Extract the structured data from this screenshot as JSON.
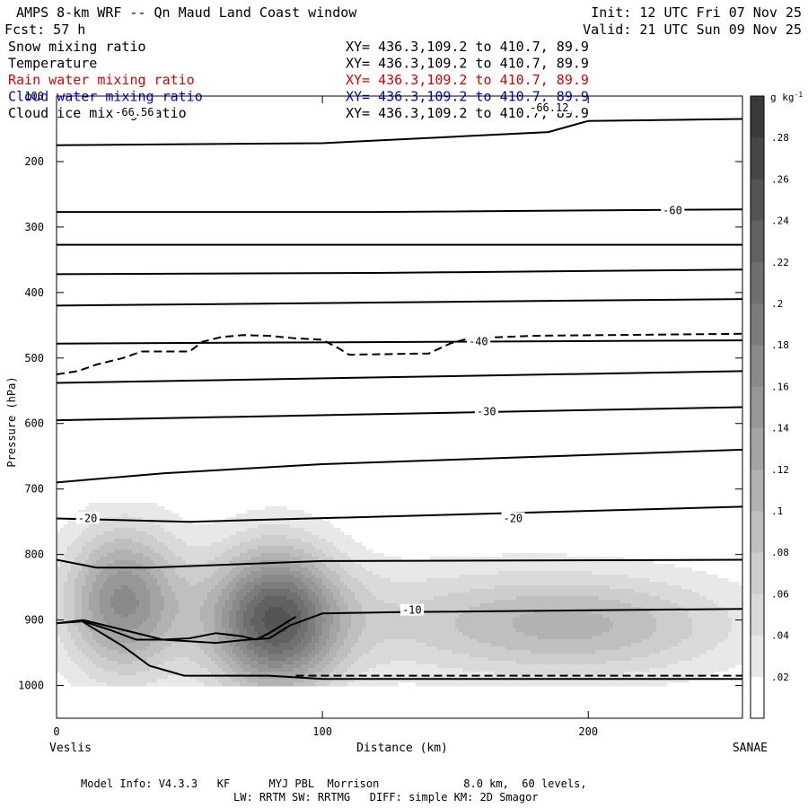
{
  "header": {
    "title": "AMPS 8-km WRF -- Qn Maud Land Coast window",
    "init": "Init: 12 UTC Fri 07 Nov 25",
    "fcst": "Fcst:   57 h",
    "valid": "Valid: 21 UTC Sun 09 Nov 25"
  },
  "fields": [
    {
      "name": "Snow mixing ratio",
      "xy": "XY= 436.3,109.2 to 410.7, 89.9",
      "color": "#000000"
    },
    {
      "name": "Temperature",
      "xy": "XY= 436.3,109.2 to 410.7, 89.9",
      "color": "#000000"
    },
    {
      "name": "Rain water mixing ratio",
      "xy": "XY= 436.3,109.2 to 410.7, 89.9",
      "color": "#e00000"
    },
    {
      "name": "Cloud water mixing ratio",
      "xy": "XY= 436.3,109.2 to 410.7, 89.9",
      "color": "#0000e0"
    },
    {
      "name": "Cloud ice mixing ratio",
      "xy": "XY= 436.3,109.2 to 410.7, 89.9",
      "color": "#000000"
    }
  ],
  "footer": {
    "line1": "Model Info: V4.3.3   KF      MYJ PBL  Morrison             8.0 km,  60 levels,",
    "line2": "LW: RRTM SW: RRTMG   DIFF: simple KM: 2D Smagor"
  },
  "chart_data": {
    "type": "heatmap",
    "xlabel": "Distance (km)",
    "ylabel": "Pressure (hPa)",
    "xlim": [
      0,
      258
    ],
    "ylim": [
      1050,
      100
    ],
    "xticks": [
      0,
      100,
      200
    ],
    "yticks": [
      100,
      200,
      300,
      400,
      500,
      600,
      700,
      800,
      900,
      1000
    ],
    "endpoints": {
      "left": "Veslis",
      "right": "SANAE"
    },
    "colorbar": {
      "unit": "g kg",
      "unit_sup": "-1",
      "ticks": [
        ".02",
        ".04",
        ".06",
        ".08",
        ".1",
        ".12",
        ".14",
        ".16",
        ".18",
        ".2",
        ".22",
        ".24",
        ".26",
        ".28"
      ],
      "levels": [
        0.02,
        0.04,
        0.06,
        0.08,
        0.1,
        0.12,
        0.14,
        0.16,
        0.18,
        0.2,
        0.22,
        0.24,
        0.26,
        0.28
      ],
      "range": [
        0,
        0.3
      ]
    },
    "snow_blobs": [
      {
        "x": 25,
        "p": 870,
        "rx": 22,
        "rp": 110,
        "amp": 0.16
      },
      {
        "x": 82,
        "p": 900,
        "rx": 24,
        "rp": 110,
        "amp": 0.22
      },
      {
        "x": 200,
        "p": 910,
        "rx": 55,
        "rp": 75,
        "amp": 0.07
      },
      {
        "x": 150,
        "p": 900,
        "rx": 90,
        "rp": 90,
        "amp": 0.05
      }
    ],
    "temperature_contours": [
      {
        "x": [
          0,
          100,
          150,
          185,
          200,
          258
        ],
        "p": [
          175,
          172,
          162,
          155,
          138,
          135
        ]
      },
      {
        "x": [
          0,
          120,
          258
        ],
        "p": [
          277,
          277,
          273
        ]
      },
      {
        "x": [
          0,
          258
        ],
        "p": [
          327,
          327
        ]
      },
      {
        "x": [
          0,
          120,
          258
        ],
        "p": [
          372,
          370,
          365
        ]
      },
      {
        "x": [
          0,
          258
        ],
        "p": [
          420,
          410
        ]
      },
      {
        "x": [
          0,
          258
        ],
        "p": [
          478,
          473
        ],
        "label": "-40",
        "label_x": 155
      },
      {
        "x": [
          0,
          258
        ],
        "p": [
          538,
          520
        ]
      },
      {
        "x": [
          0,
          258
        ],
        "p": [
          595,
          575
        ],
        "label": "-30",
        "label_x": 160
      },
      {
        "x": [
          0,
          40,
          100,
          258
        ],
        "p": [
          690,
          676,
          662,
          640
        ]
      },
      {
        "x": [
          0,
          50,
          258
        ],
        "p": [
          745,
          750,
          727
        ],
        "label": "-20",
        "label_x": 170
      },
      {
        "x": [
          0,
          15,
          35,
          100,
          258
        ],
        "p": [
          808,
          820,
          820,
          810,
          808
        ]
      },
      {
        "x": [
          0,
          10,
          20,
          40,
          60,
          72,
          80,
          88,
          100,
          130,
          258
        ],
        "p": [
          905,
          900,
          910,
          930,
          935,
          930,
          928,
          908,
          890,
          888,
          883
        ],
        "label": "-10",
        "label_x": 130
      },
      {
        "x": [
          0,
          10,
          20,
          30,
          40,
          50,
          60,
          70,
          75,
          80,
          90
        ],
        "p": [
          905,
          902,
          915,
          930,
          930,
          928,
          920,
          925,
          930,
          920,
          895
        ]
      },
      {
        "x": [
          10,
          25,
          35,
          48,
          80,
          100,
          258
        ],
        "p": [
          903,
          940,
          970,
          985,
          985,
          990,
          990
        ]
      }
    ],
    "rain_contours": [
      {
        "dashed": true,
        "x": [
          0,
          8,
          15,
          25,
          32,
          40,
          50,
          55,
          62,
          70,
          80,
          90,
          100,
          106,
          110,
          140,
          148,
          155,
          180,
          258
        ],
        "p": [
          525,
          520,
          510,
          500,
          490,
          490,
          490,
          475,
          468,
          465,
          466,
          470,
          472,
          485,
          495,
          493,
          478,
          470,
          466,
          463
        ]
      },
      {
        "dashed": true,
        "x": [
          90,
          100,
          200,
          258
        ],
        "p": [
          985,
          985,
          985,
          985
        ]
      }
    ],
    "contour_labels": [
      "-66.12",
      "-66.56",
      "-60",
      "-40",
      "-30",
      "-20",
      "-20",
      "-10"
    ]
  }
}
